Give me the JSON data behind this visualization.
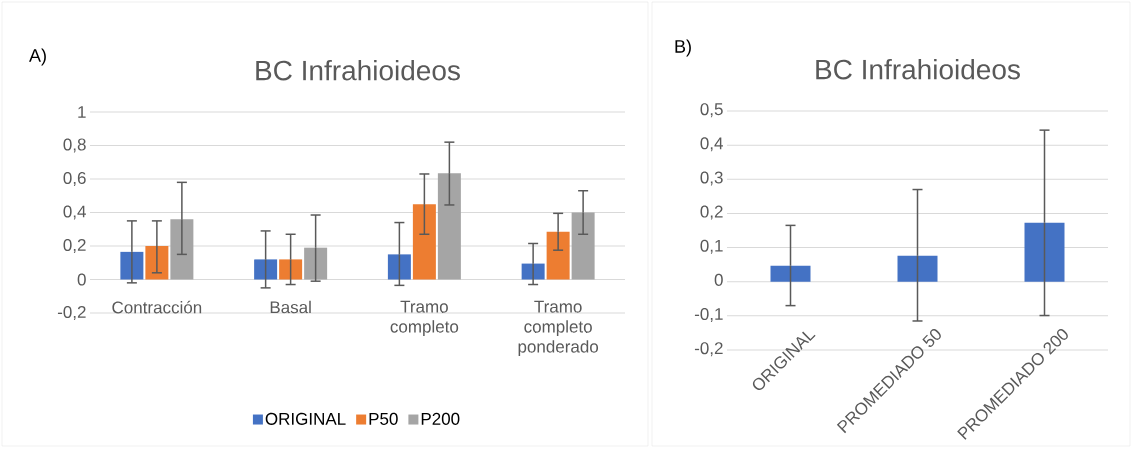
{
  "chart_data": [
    {
      "type": "bar",
      "title": "BC Infrahioideos",
      "annotations": [
        "A)"
      ],
      "categories": [
        "Contracción",
        "Basal",
        "Tramo completo",
        "Tramo completo ponderado"
      ],
      "series": [
        {
          "name": "ORIGINAL",
          "color": "#4472c4",
          "values": [
            0.165,
            0.12,
            0.15,
            0.095
          ],
          "errors": [
            [
              -0.02,
              0.35
            ],
            [
              -0.05,
              0.29
            ],
            [
              -0.035,
              0.34
            ],
            [
              -0.03,
              0.215
            ]
          ]
        },
        {
          "name": "P50",
          "color": "#ed7d31",
          "values": [
            0.2,
            0.12,
            0.45,
            0.285
          ],
          "errors": [
            [
              0.04,
              0.35
            ],
            [
              -0.03,
              0.27
            ],
            [
              0.27,
              0.63
            ],
            [
              0.175,
              0.395
            ]
          ]
        },
        {
          "name": "P200",
          "color": "#a5a5a5",
          "values": [
            0.36,
            0.19,
            0.635,
            0.4
          ],
          "errors": [
            [
              0.15,
              0.58
            ],
            [
              -0.01,
              0.385
            ],
            [
              0.445,
              0.82
            ],
            [
              0.27,
              0.53
            ]
          ]
        }
      ],
      "ylim": [
        -0.2,
        1
      ],
      "yticks": [
        {
          "value": -0.2,
          "label": "-0,2"
        },
        0,
        {
          "value": 0.2,
          "label": "0,2"
        },
        {
          "value": 0.4,
          "label": "0,4"
        },
        {
          "value": 0.6,
          "label": "0,6"
        },
        {
          "value": 0.8,
          "label": "0,8"
        },
        1
      ],
      "grid": "y",
      "legend": "bottom"
    },
    {
      "type": "bar",
      "title": "BC Infrahioideos",
      "annotations": [
        "B)"
      ],
      "categories": [
        "ORIGINAL",
        "PROMEDIADO 50",
        "PROMEDIADO 200"
      ],
      "series": [
        {
          "color": "#4472c4",
          "values": [
            0.047,
            0.076,
            0.173
          ],
          "errors": [
            [
              -0.07,
              0.165
            ],
            [
              -0.115,
              0.27
            ],
            [
              -0.099,
              0.444
            ]
          ]
        }
      ],
      "ylim": [
        -0.2,
        0.5
      ],
      "yticks": [
        {
          "value": -0.2,
          "label": "-0,2"
        },
        {
          "value": -0.1,
          "label": "-0,1"
        },
        0,
        {
          "value": 0.1,
          "label": "0,1"
        },
        {
          "value": 0.2,
          "label": "0,2"
        },
        {
          "value": 0.3,
          "label": "0,3"
        },
        {
          "value": 0.4,
          "label": "0,4"
        },
        {
          "value": 0.5,
          "label": "0,5"
        }
      ],
      "grid": "y",
      "legend": false
    }
  ]
}
